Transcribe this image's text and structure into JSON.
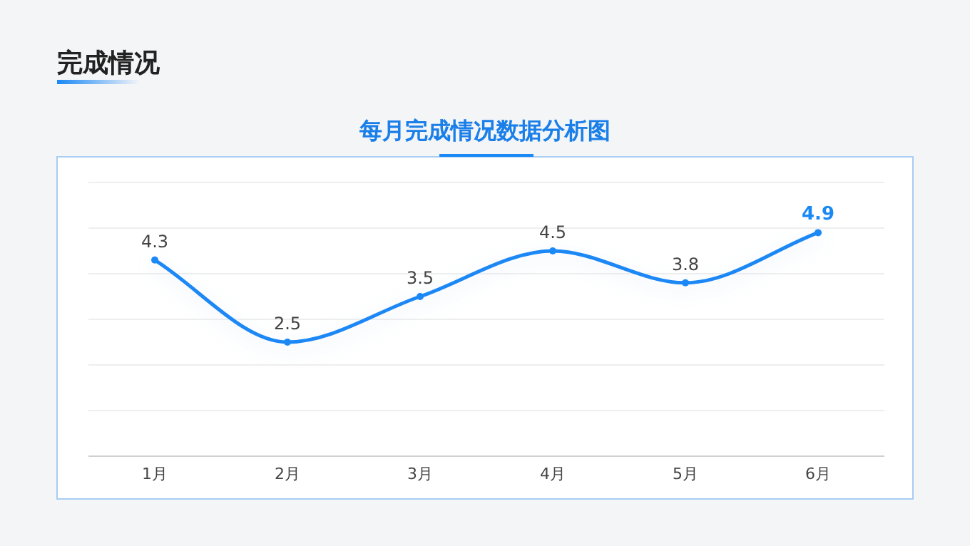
{
  "chart_data": {
    "type": "line",
    "title": "完成情况",
    "subtitle": "每月完成情况数据分析图",
    "categories": [
      "1月",
      "2月",
      "3月",
      "4月",
      "5月",
      "6月"
    ],
    "series": [
      {
        "color": "#1a88f5",
        "values": [
          4.3,
          2.5,
          3.5,
          4.5,
          3.8,
          4.9
        ]
      }
    ],
    "ylim": [
      0,
      6
    ],
    "yticks": [
      {
        "value": 0,
        "label": null
      },
      {
        "value": 1,
        "label": null
      },
      {
        "value": 2,
        "label": null
      },
      {
        "value": 3,
        "label": null
      },
      {
        "value": 4,
        "label": null
      },
      {
        "value": 5,
        "label": null
      },
      {
        "value": 6,
        "label": null
      }
    ],
    "tick_labels": "x",
    "grid": "y",
    "data_labels": true,
    "marker": "circle",
    "line_style": "solid"
  }
}
